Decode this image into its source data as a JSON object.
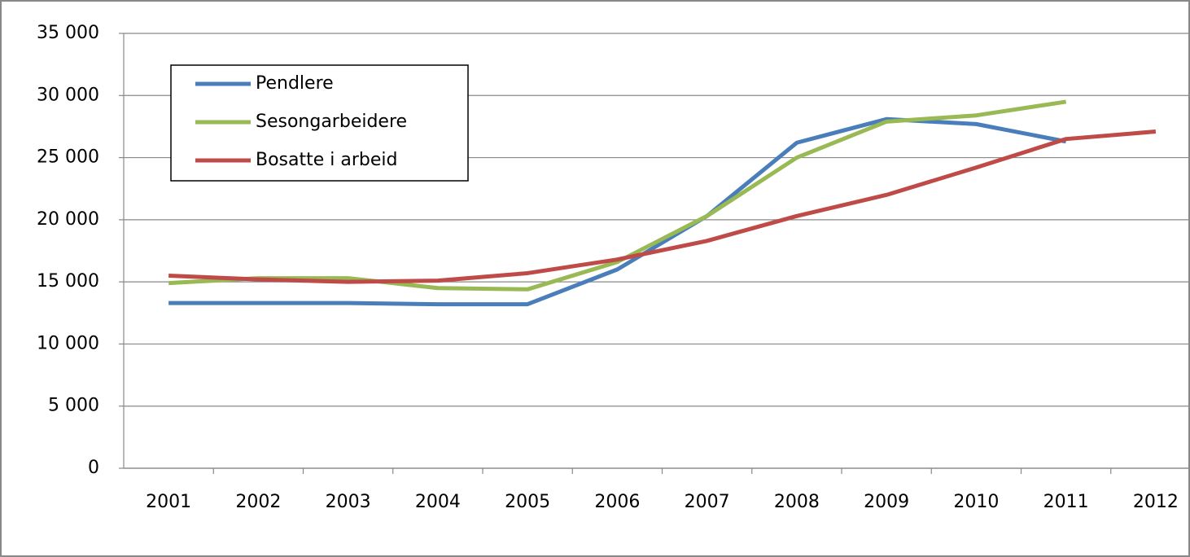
{
  "chart_data": {
    "type": "line",
    "categories": [
      "2001",
      "2002",
      "2003",
      "2004",
      "2005",
      "2006",
      "2007",
      "2008",
      "2009",
      "2010",
      "2011",
      "2012"
    ],
    "series": [
      {
        "name": "Pendlere",
        "color": "#4a7ebb",
        "values": [
          13300,
          13300,
          13300,
          13200,
          13200,
          16000,
          20300,
          26200,
          28100,
          27700,
          26300,
          null
        ]
      },
      {
        "name": "Sesongarbeidere",
        "color": "#98b954",
        "values": [
          14900,
          15300,
          15300,
          14500,
          14400,
          16600,
          20300,
          25000,
          27900,
          28400,
          29500,
          null
        ]
      },
      {
        "name": "Bosatte i arbeid",
        "color": "#be4b48",
        "values": [
          15500,
          15200,
          15000,
          15100,
          15700,
          16800,
          18300,
          20300,
          22000,
          24200,
          26500,
          27100
        ]
      }
    ],
    "ylim": [
      0,
      35000
    ],
    "yticks": [
      0,
      {
        "value": 5000,
        "label": "5 000"
      },
      {
        "value": 10000,
        "label": "10 000"
      },
      {
        "value": 15000,
        "label": "15 000"
      },
      {
        "value": 20000,
        "label": "20 000"
      },
      {
        "value": 25000,
        "label": "25 000"
      },
      {
        "value": 30000,
        "label": "30 000"
      },
      {
        "value": 35000,
        "label": "35 000"
      }
    ],
    "grid": true,
    "legend": "upper-left"
  }
}
